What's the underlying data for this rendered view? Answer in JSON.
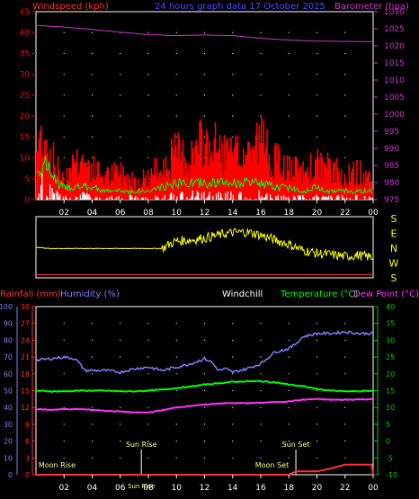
{
  "colors": {
    "background": "#000000",
    "grid": "#ffffff",
    "windspeed": "#ff0000",
    "barometer": "#cc33cc",
    "wind_avg": "#00ff00",
    "wind_calm": "#ffffff",
    "wind_dir": "#ffff00",
    "rain_trace": "#ff3030",
    "humidity": "#7f7fff",
    "temperature": "#00ff00",
    "dew_point": "#ff33ff",
    "rainfall_axis": "#ff3030",
    "humidity_axis": "#7f7fff",
    "temperature_axis": "#00cc00"
  },
  "chart_data": [
    {
      "type": "line",
      "name": "wind-barometer",
      "title": "24 hours graph data  17 October 2025",
      "ylabel_left": "Windspeed (kph)",
      "ylabel_right": "Barometer (hpa)",
      "y_left_range": [
        0,
        45
      ],
      "y_left_ticks": [
        0,
        5,
        10,
        15,
        20,
        25,
        30,
        35,
        40,
        45
      ],
      "y_right_range": [
        975,
        1030
      ],
      "y_right_ticks": [
        975,
        980,
        985,
        990,
        995,
        1000,
        1005,
        1010,
        1015,
        1020,
        1025,
        1030
      ],
      "x_ticks": [
        "02",
        "04",
        "06",
        "08",
        "10",
        "12",
        "14",
        "16",
        "18",
        "20",
        "22",
        "00"
      ],
      "x_range": [
        0,
        24
      ],
      "grid": true,
      "barometer": {
        "x": [
          0,
          2,
          4,
          6,
          8,
          10,
          12,
          14,
          16,
          18,
          20,
          22,
          24
        ],
        "values": [
          1026.0,
          1025.5,
          1024.8,
          1024.0,
          1023.3,
          1023.0,
          1023.2,
          1023.0,
          1022.2,
          1021.7,
          1021.4,
          1021.3,
          1021.2
        ]
      },
      "wind_gust": {
        "x": [
          0,
          0.5,
          1,
          1.5,
          2,
          3,
          4,
          5,
          6,
          7,
          8,
          9,
          10,
          11,
          12,
          13,
          14,
          15,
          16,
          17,
          18,
          19,
          20,
          21,
          22,
          23,
          24
        ],
        "values": [
          12,
          18,
          12,
          8,
          6,
          11,
          8,
          6,
          7,
          5,
          6,
          9,
          12,
          11,
          15,
          13,
          11,
          12,
          16,
          10,
          8,
          7,
          9,
          8,
          6,
          7,
          5
        ]
      },
      "wind_avg": {
        "x": [
          0,
          0.5,
          1,
          1.5,
          2,
          3,
          4,
          5,
          6,
          7,
          8,
          9,
          10,
          11,
          12,
          13,
          14,
          15,
          16,
          17,
          18,
          19,
          20,
          21,
          22,
          23,
          24
        ],
        "values": [
          6,
          9,
          7,
          4,
          3,
          3,
          3,
          2,
          2,
          2,
          2,
          3,
          4,
          4,
          4,
          4,
          4,
          4,
          4,
          3,
          3,
          2,
          3,
          2,
          2,
          2,
          2
        ]
      },
      "calm_fill": {
        "x": [
          0,
          0.5,
          1,
          1.5,
          2,
          3,
          4,
          5,
          6,
          7,
          8,
          9,
          10,
          11,
          12,
          13,
          14,
          15,
          16,
          17,
          18,
          19,
          20,
          21,
          22,
          23,
          24
        ],
        "values": [
          3,
          6,
          4,
          2,
          1,
          2,
          1,
          1,
          1,
          1,
          1,
          1,
          2,
          2,
          2,
          2,
          2,
          2,
          2,
          1,
          1,
          1,
          1,
          1,
          1,
          1,
          1
        ]
      }
    },
    {
      "type": "line",
      "name": "wind-direction",
      "ylabel_right": [
        "S",
        "E",
        "N",
        "W",
        "S"
      ],
      "x_range": [
        0,
        24
      ],
      "direction": {
        "x": [
          0,
          1,
          2,
          3,
          4,
          5,
          6,
          7,
          8,
          9,
          9.5,
          10,
          11,
          12,
          13,
          14,
          15,
          16,
          17,
          18,
          19,
          20,
          21,
          22,
          23,
          24
        ],
        "values": [
          0.5,
          0.48,
          0.48,
          0.48,
          0.48,
          0.48,
          0.48,
          0.48,
          0.48,
          0.48,
          0.55,
          0.6,
          0.62,
          0.65,
          0.7,
          0.74,
          0.75,
          0.7,
          0.62,
          0.55,
          0.45,
          0.4,
          0.38,
          0.35,
          0.37,
          0.33
        ]
      },
      "rain_trace": {
        "x": [
          0,
          24
        ],
        "values": [
          0.05,
          0.05
        ]
      }
    },
    {
      "type": "line",
      "name": "temp-humidity",
      "header_labels": {
        "rainfall": "Rainfall (mm)",
        "humidity": "Humidity (%)",
        "windchill": "Windchill",
        "temperature": "Temperature (°C)",
        "dew_point": "Dew Point (°C)"
      },
      "humidity_range": [
        0,
        100
      ],
      "humidity_ticks": [
        0,
        10,
        20,
        30,
        40,
        50,
        60,
        70,
        80,
        90,
        100
      ],
      "rainfall_range": [
        0,
        30
      ],
      "rainfall_ticks": [
        0,
        3,
        6,
        9,
        12,
        15,
        18,
        21,
        24,
        27,
        30
      ],
      "temperature_range": [
        -10,
        40
      ],
      "temperature_ticks": [
        -10,
        -5,
        0,
        5,
        10,
        15,
        20,
        25,
        30,
        35,
        40
      ],
      "x_ticks": [
        "02",
        "04",
        "06",
        "08",
        "10",
        "12",
        "14",
        "16",
        "18",
        "20",
        "22",
        "00"
      ],
      "x_range": [
        0,
        24
      ],
      "grid": true,
      "humidity": {
        "x": [
          0,
          1,
          2,
          2.8,
          3.5,
          5,
          6,
          7,
          8,
          9,
          10,
          11,
          12,
          12.5,
          13,
          13.5,
          14,
          15,
          16,
          17,
          18,
          18.5,
          19,
          20,
          21,
          22,
          23,
          24
        ],
        "values": [
          68,
          69,
          70,
          69,
          62,
          62,
          61,
          63,
          64,
          62,
          64,
          66,
          69,
          67,
          62,
          63,
          61,
          63,
          66,
          73,
          75,
          78,
          82,
          84,
          84,
          85,
          84,
          84
        ]
      },
      "temperature": {
        "x": [
          0,
          1,
          2,
          3,
          4,
          5,
          6,
          7,
          8,
          9,
          10,
          11,
          12,
          13,
          14,
          15,
          16,
          17,
          18,
          19,
          20,
          21,
          22,
          23,
          24
        ],
        "values": [
          15.0,
          14.8,
          14.8,
          15.0,
          15.0,
          15.0,
          14.8,
          14.8,
          15.0,
          15.3,
          15.8,
          16.2,
          16.8,
          17.2,
          17.6,
          17.8,
          17.8,
          17.5,
          16.8,
          16.3,
          15.5,
          15.0,
          14.8,
          14.8,
          15.0
        ]
      },
      "dew_point": {
        "x": [
          0,
          1,
          2,
          3,
          4,
          5,
          6,
          7,
          8,
          9,
          10,
          11,
          12,
          13,
          14,
          15,
          16,
          17,
          18,
          19,
          20,
          21,
          22,
          23,
          24
        ],
        "values": [
          9.5,
          9.3,
          9.5,
          9.5,
          9.3,
          9.0,
          8.8,
          8.5,
          8.5,
          9.2,
          10.0,
          10.5,
          10.8,
          11.2,
          11.3,
          11.3,
          11.4,
          11.6,
          11.8,
          12.3,
          12.5,
          12.3,
          12.3,
          12.4,
          12.5
        ]
      },
      "rainfall": {
        "x": [
          0,
          17,
          18,
          18.5,
          19,
          20,
          21,
          22,
          23,
          23.5,
          23.9,
          24
        ],
        "values": [
          0,
          0,
          0,
          0.6,
          0.6,
          0.6,
          1.1,
          1.8,
          1.8,
          1.8,
          1.8,
          0
        ]
      },
      "events": [
        {
          "label": "Moon Rise",
          "x": 1.5,
          "row": "low"
        },
        {
          "label": "Sun Rise",
          "x": 7.5,
          "row": "high"
        },
        {
          "label": "Sun Rise",
          "x": 7.5,
          "row": "axis"
        },
        {
          "label": "Sun Set",
          "x": 18.5,
          "row": "high"
        },
        {
          "label": "Moon Set",
          "x": 16.8,
          "row": "low"
        }
      ]
    }
  ]
}
